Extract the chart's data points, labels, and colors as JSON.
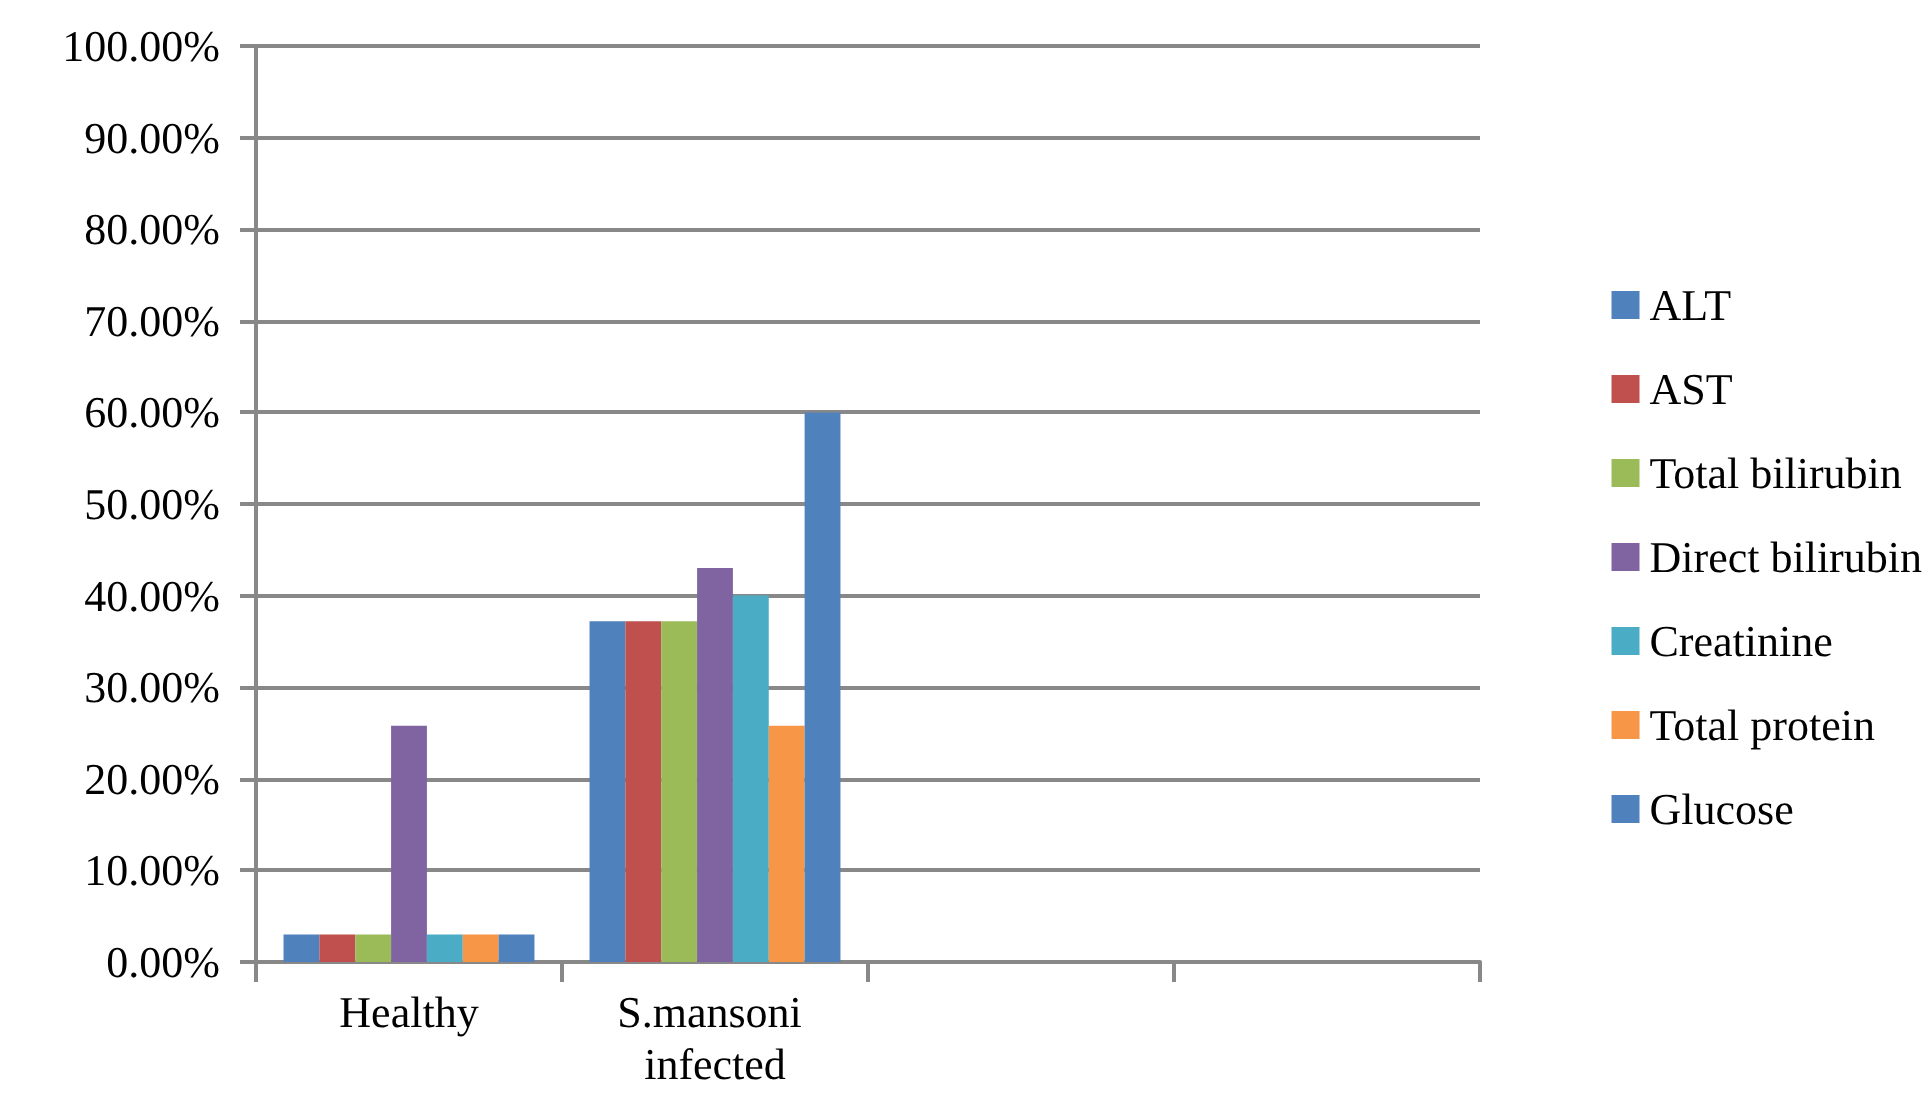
{
  "chart_data": {
    "type": "bar",
    "categories": [
      "Healthy",
      "S.mansoni infected",
      null,
      null
    ],
    "series": [
      {
        "name": "ALT",
        "color": "#4f81bd",
        "values": [
          3,
          37.2,
          null,
          null
        ]
      },
      {
        "name": "AST",
        "color": "#c0504d",
        "values": [
          3,
          37.2,
          null,
          null
        ]
      },
      {
        "name": "Total bilirubin",
        "color": "#9bbb59",
        "values": [
          3,
          37.2,
          null,
          null
        ]
      },
      {
        "name": "Direct bilirubin",
        "color": "#8064a2",
        "values": [
          25.8,
          43,
          null,
          null
        ]
      },
      {
        "name": "Creatinine",
        "color": "#4bacc6",
        "values": [
          3,
          40,
          null,
          null
        ]
      },
      {
        "name": "Total protein",
        "color": "#f79646",
        "values": [
          3,
          25.8,
          null,
          null
        ]
      },
      {
        "name": "Glucose",
        "color": "#4f81bd",
        "values": [
          3,
          60,
          null,
          null
        ]
      }
    ],
    "ylim": [
      0,
      100
    ],
    "yticks": [
      {
        "value": 0,
        "label": "0.00%"
      },
      {
        "value": 10,
        "label": "10.00%"
      },
      {
        "value": 20,
        "label": "20.00%"
      },
      {
        "value": 30,
        "label": "30.00%"
      },
      {
        "value": 40,
        "label": "40.00%"
      },
      {
        "value": 50,
        "label": "50.00%"
      },
      {
        "value": 60,
        "label": "60.00%"
      },
      {
        "value": 70,
        "label": "70.00%"
      },
      {
        "value": 80,
        "label": "80.00%"
      },
      {
        "value": 90,
        "label": "90.00%"
      },
      {
        "value": 100,
        "label": "100.00%"
      }
    ],
    "grid": true,
    "legend": "right"
  }
}
